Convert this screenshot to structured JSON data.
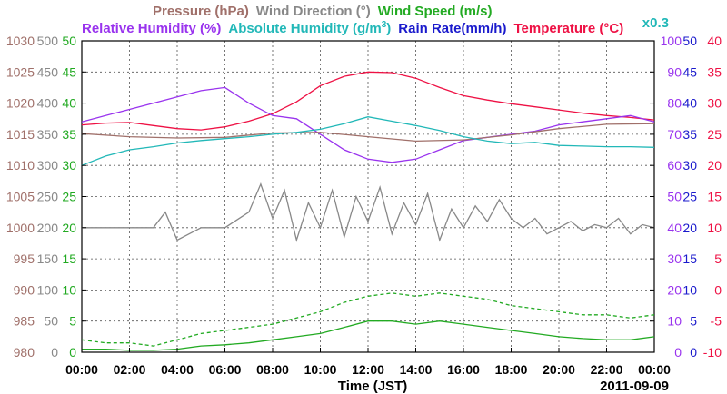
{
  "chart_data": {
    "type": "line",
    "date": "2011-09-09",
    "x_axis": {
      "label": "Time (JST)",
      "range": [
        "00:00",
        "24:00"
      ],
      "ticks": [
        "00:00",
        "02:00",
        "04:00",
        "06:00",
        "08:00",
        "10:00",
        "12:00",
        "14:00",
        "16:00",
        "18:00",
        "20:00",
        "22:00",
        "00:00"
      ]
    },
    "legend": [
      {
        "text": "Pressure (hPa)",
        "color": "#a0706a"
      },
      {
        "text": "Wind Direction (°)",
        "color": "#888888"
      },
      {
        "text": "Wind Speed (m/s)",
        "color": "#22aa22"
      },
      {
        "text": "Relative Humidity (%)",
        "color": "#9933ee"
      },
      {
        "text": "Absolute Humidity (g/m",
        "sup": "3",
        "close": ")",
        "color": "#22b8b8"
      },
      {
        "text": "Rain Rate(mm/h)",
        "color": "#1a1acc"
      },
      {
        "text": "Temperature (°C)",
        "color": "#ee1144"
      },
      {
        "text": "x0.3",
        "color": "#22b8b8"
      }
    ],
    "axes": {
      "pressure": {
        "ticks": [
          "980",
          "985",
          "990",
          "995",
          "1000",
          "1005",
          "1010",
          "1015",
          "1020",
          "1025",
          "1030"
        ],
        "color": "#a0706a",
        "range": [
          980,
          1030
        ]
      },
      "direction": {
        "ticks": [
          "0",
          "50",
          "100",
          "150",
          "200",
          "250",
          "300",
          "350",
          "400",
          "450",
          "500"
        ],
        "color": "#888888",
        "range": [
          0,
          500
        ]
      },
      "speed": {
        "ticks": [
          "0",
          "5",
          "10",
          "15",
          "20",
          "25",
          "30",
          "35",
          "40",
          "45",
          "50"
        ],
        "color": "#22aa22",
        "range": [
          0,
          50
        ]
      },
      "humidity": {
        "ticks": [
          "0",
          "10",
          "20",
          "30",
          "40",
          "50",
          "60",
          "70",
          "80",
          "90",
          "100"
        ],
        "color": "#9933ee",
        "range": [
          0,
          100
        ]
      },
      "rain": {
        "ticks": [
          "0",
          "5",
          "10",
          "15",
          "20",
          "25",
          "30",
          "35",
          "40",
          "45",
          "50"
        ],
        "color": "#1a1acc",
        "range": [
          0,
          50
        ]
      },
      "temperature": {
        "ticks": [
          "-10",
          "-5",
          "0",
          "5",
          "10",
          "15",
          "20",
          "25",
          "30",
          "35",
          "40"
        ],
        "color": "#ee1144",
        "range": [
          -10,
          40
        ]
      }
    },
    "grid": true,
    "series": [
      {
        "name": "Temperature (°C)",
        "color": "#ee1144",
        "axis": "temperature",
        "x": [
          0,
          1,
          2,
          3,
          4,
          5,
          6,
          7,
          8,
          9,
          10,
          11,
          12,
          13,
          14,
          15,
          16,
          17,
          18,
          19,
          20,
          21,
          22,
          23,
          24
        ],
        "y": [
          26.5,
          26.8,
          26.9,
          26.4,
          25.9,
          25.7,
          26.2,
          27.1,
          28.3,
          30.2,
          32.8,
          34.3,
          35.0,
          34.9,
          34.0,
          32.5,
          31.2,
          30.5,
          29.9,
          29.4,
          28.9,
          28.4,
          28.0,
          27.7,
          27.3
        ]
      },
      {
        "name": "Relative Humidity (%)",
        "color": "#9933ee",
        "axis": "humidity",
        "x": [
          0,
          1,
          2,
          3,
          4,
          5,
          6,
          7,
          8,
          9,
          10,
          11,
          12,
          13,
          14,
          15,
          16,
          17,
          18,
          19,
          20,
          21,
          22,
          23,
          24
        ],
        "y": [
          74,
          76,
          78,
          80,
          82,
          84,
          85,
          80,
          76,
          75,
          70,
          65,
          62,
          61,
          62,
          65,
          68,
          69,
          70,
          71,
          73,
          74,
          75,
          76,
          74
        ]
      },
      {
        "name": "Pressure (hPa)",
        "color": "#a0706a",
        "axis": "pressure",
        "x": [
          0,
          2,
          4,
          6,
          8,
          10,
          12,
          14,
          16,
          18,
          20,
          22,
          24
        ],
        "y": [
          1015.1,
          1014.6,
          1014.4,
          1014.5,
          1015.2,
          1015.3,
          1014.6,
          1013.9,
          1014.1,
          1014.9,
          1015.9,
          1016.6,
          1016.7
        ]
      },
      {
        "name": "Absolute Humidity (g/m3)",
        "color": "#22b8b8",
        "axis": "speed",
        "x": [
          0,
          1,
          2,
          3,
          4,
          5,
          6,
          7,
          8,
          9,
          10,
          11,
          12,
          13,
          14,
          15,
          16,
          17,
          18,
          19,
          20,
          21,
          22,
          23,
          24
        ],
        "y": [
          30,
          31.5,
          32.5,
          33.0,
          33.6,
          34.0,
          34.3,
          34.6,
          35.0,
          35.3,
          35.8,
          36.7,
          37.8,
          37.1,
          36.4,
          35.6,
          34.6,
          33.9,
          33.5,
          33.7,
          33.2,
          33.1,
          33.0,
          33.0,
          32.9
        ]
      },
      {
        "name": "Wind Direction (°)",
        "color": "#888888",
        "axis": "direction",
        "x": [
          0,
          1,
          2,
          3,
          3.5,
          4,
          5,
          6,
          7,
          7.5,
          8,
          8.5,
          9,
          9.5,
          10,
          10.5,
          11,
          11.5,
          12,
          12.5,
          13,
          13.5,
          14,
          14.5,
          15,
          15.5,
          16,
          16.5,
          17,
          17.5,
          18,
          18.5,
          19,
          19.5,
          20,
          20.5,
          21,
          21.5,
          22,
          22.5,
          23,
          23.5,
          24
        ],
        "y": [
          200,
          200,
          200,
          200,
          225,
          180,
          200,
          200,
          225,
          270,
          215,
          260,
          180,
          240,
          200,
          260,
          185,
          250,
          210,
          265,
          190,
          240,
          205,
          255,
          180,
          230,
          200,
          235,
          210,
          245,
          215,
          200,
          215,
          190,
          200,
          210,
          195,
          205,
          200,
          215,
          190,
          205,
          200
        ]
      },
      {
        "name": "Wind Speed (m/s)",
        "color": "#22aa22",
        "axis": "speed",
        "style": "dashed",
        "x": [
          0,
          1,
          2,
          3,
          4,
          5,
          6,
          7,
          8,
          9,
          10,
          11,
          12,
          13,
          14,
          15,
          16,
          17,
          18,
          19,
          20,
          21,
          22,
          23,
          24
        ],
        "y": [
          2,
          1.5,
          1.5,
          1,
          2,
          3,
          3.5,
          4,
          4.5,
          5.5,
          6.5,
          8,
          9,
          9.5,
          9,
          9.5,
          9,
          8.5,
          7.5,
          7,
          6.5,
          6,
          6,
          5.5,
          6
        ]
      },
      {
        "name": "Wind Speed (m/s)",
        "color": "#22aa22",
        "axis": "speed",
        "x": [
          0,
          1,
          2,
          3,
          4,
          5,
          6,
          7,
          8,
          9,
          10,
          11,
          12,
          13,
          14,
          15,
          16,
          17,
          18,
          19,
          20,
          21,
          22,
          23,
          24
        ],
        "y": [
          0.5,
          0.5,
          0.3,
          0.3,
          0.5,
          1,
          1.2,
          1.5,
          2,
          2.5,
          3,
          4,
          5,
          5,
          4.5,
          5,
          4.5,
          4,
          3.5,
          3,
          2.5,
          2.2,
          2,
          2,
          2.5
        ]
      }
    ]
  }
}
